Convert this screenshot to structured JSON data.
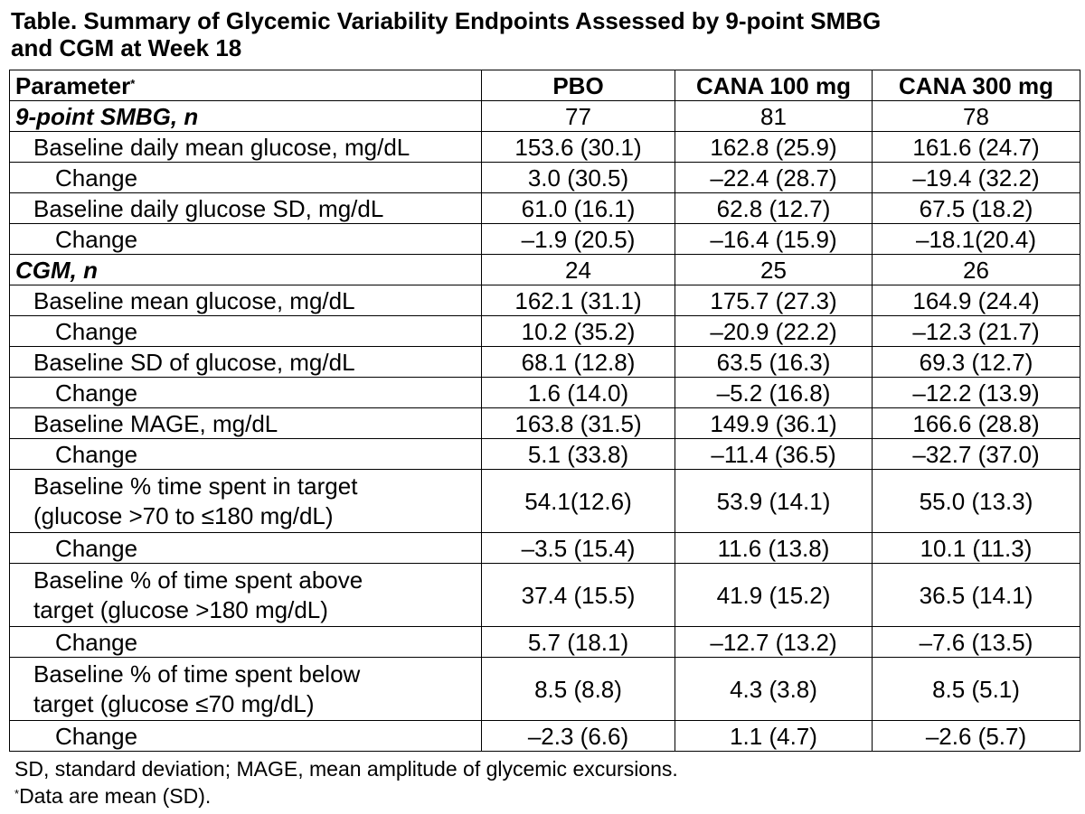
{
  "title": {
    "line1": "Table.  Summary of Glycemic Variability Endpoints Assessed by 9-point SMBG",
    "line2": "and CGM at Week 18"
  },
  "header": {
    "parameter": "Parameter",
    "parameter_mark": "*",
    "cols": [
      "PBO",
      "CANA 100 mg",
      "CANA 300 mg"
    ]
  },
  "rows": [
    {
      "label": "9-point SMBG, n",
      "values": [
        "77",
        "81",
        "78"
      ]
    },
    {
      "label": "Baseline daily mean glucose, mg/dL",
      "values": [
        "153.6 (30.1)",
        "162.8 (25.9)",
        "161.6 (24.7)"
      ]
    },
    {
      "label": "Change",
      "values": [
        "3.0 (30.5)",
        "–22.4 (28.7)",
        "–19.4 (32.2)"
      ]
    },
    {
      "label": "Baseline daily glucose SD, mg/dL",
      "values": [
        "61.0 (16.1)",
        "62.8 (12.7)",
        "67.5 (18.2)"
      ]
    },
    {
      "label": "Change",
      "values": [
        "–1.9 (20.5)",
        "–16.4 (15.9)",
        "–18.1(20.4)"
      ]
    },
    {
      "label": "CGM, n",
      "values": [
        "24",
        "25",
        "26"
      ]
    },
    {
      "label": "Baseline mean glucose, mg/dL",
      "values": [
        "162.1 (31.1)",
        "175.7 (27.3)",
        "164.9 (24.4)"
      ]
    },
    {
      "label": "Change",
      "values": [
        "10.2 (35.2)",
        "–20.9 (22.2)",
        "–12.3 (21.7)"
      ]
    },
    {
      "label": "Baseline SD of glucose, mg/dL",
      "values": [
        "68.1 (12.8)",
        "63.5 (16.3)",
        "69.3 (12.7)"
      ]
    },
    {
      "label": "Change",
      "values": [
        "1.6 (14.0)",
        "–5.2 (16.8)",
        "–12.2 (13.9)"
      ]
    },
    {
      "label": "Baseline MAGE, mg/dL",
      "values": [
        "163.8 (31.5)",
        "149.9 (36.1)",
        "166.6 (28.8)"
      ]
    },
    {
      "label": "Change",
      "values": [
        "5.1 (33.8)",
        "–11.4 (36.5)",
        "–32.7 (37.0)"
      ]
    },
    {
      "label_line1": "Baseline % time spent in target",
      "label_line2": "(glucose >70 to ≤180 mg/dL)",
      "values": [
        "54.1(12.6)",
        "53.9 (14.1)",
        "55.0 (13.3)"
      ]
    },
    {
      "label": "Change",
      "values": [
        "–3.5 (15.4)",
        "11.6 (13.8)",
        "10.1 (11.3)"
      ]
    },
    {
      "label_line1": "Baseline % of time spent above",
      "label_line2": "target (glucose >180 mg/dL)",
      "values": [
        "37.4 (15.5)",
        "41.9 (15.2)",
        "36.5 (14.1)"
      ]
    },
    {
      "label": "Change",
      "values": [
        "5.7 (18.1)",
        "–12.7 (13.2)",
        "–7.6 (13.5)"
      ]
    },
    {
      "label_line1": "Baseline % of time spent below",
      "label_line2": "target (glucose ≤70 mg/dL)",
      "values": [
        "8.5 (8.8)",
        "4.3 (3.8)",
        "8.5 (5.1)"
      ]
    },
    {
      "label": "Change",
      "values": [
        "–2.3 (6.6)",
        "1.1 (4.7)",
        "–2.6 (5.7)"
      ]
    }
  ],
  "footnotes": {
    "abbrev": "SD, standard deviation; MAGE, mean amplitude of glycemic excursions.",
    "mark": "*",
    "note": "Data are mean (SD)."
  }
}
